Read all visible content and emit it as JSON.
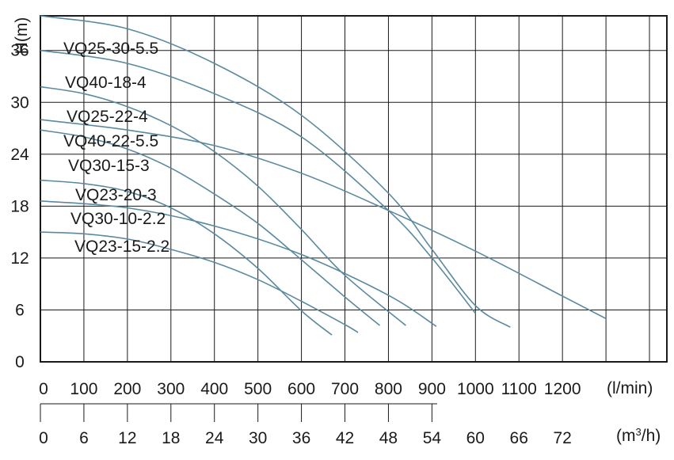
{
  "chart_data": {
    "type": "line",
    "ylabel": "H(m)",
    "ylim": [
      0,
      40
    ],
    "yticks": [
      "0",
      "6",
      "12",
      "18",
      "24",
      "30",
      "36"
    ],
    "ytick_values": [
      0,
      6,
      12,
      18,
      24,
      30,
      36
    ],
    "x_primary": {
      "unit": "(l/min)",
      "ticks": [
        "0",
        "100",
        "200",
        "300",
        "400",
        "500",
        "600",
        "700",
        "800",
        "900",
        "1000",
        "1100",
        "1200"
      ],
      "tick_values": [
        0,
        100,
        200,
        300,
        400,
        500,
        600,
        700,
        800,
        900,
        1000,
        1100,
        1200
      ],
      "xlim": [
        0,
        1440
      ]
    },
    "x_secondary": {
      "unit_base": "(m",
      "unit_sup": "3",
      "unit_tail": "/h)",
      "ticks": [
        "0",
        "6",
        "12",
        "18",
        "24",
        "30",
        "36",
        "42",
        "48",
        "54",
        "60",
        "66",
        "72"
      ],
      "tick_values": [
        0,
        6,
        12,
        18,
        24,
        30,
        36,
        42,
        48,
        54,
        60,
        66,
        72
      ]
    },
    "grid": true,
    "series": [
      {
        "name": "VQ25-30-5.5",
        "x": [
          0,
          200,
          400,
          600,
          800,
          900,
          1000,
          1080
        ],
        "y": [
          40,
          38.5,
          34.5,
          28.5,
          19.5,
          13,
          6.5,
          4
        ]
      },
      {
        "name": "VQ40-18-4",
        "x": [
          0,
          200,
          400,
          600,
          800,
          900,
          1000
        ],
        "y": [
          36,
          34.5,
          31,
          26,
          17.5,
          12,
          5.6
        ]
      },
      {
        "name": "VQ25-22-4",
        "x": [
          0,
          100,
          200,
          300,
          400,
          500,
          600,
          700,
          840
        ],
        "y": [
          31.8,
          31,
          29.5,
          27.3,
          24.3,
          20.3,
          15.3,
          10,
          4.2
        ]
      },
      {
        "name": "VQ40-22-5.5",
        "x": [
          0,
          200,
          400,
          600,
          800,
          1000,
          1200,
          1300
        ],
        "y": [
          28,
          26.8,
          25,
          21.8,
          17.5,
          12.8,
          7.6,
          5
        ]
      },
      {
        "name": "VQ30-15-3",
        "x": [
          0,
          100,
          200,
          300,
          400,
          500,
          600,
          700,
          780
        ],
        "y": [
          26.8,
          26,
          24.6,
          22.4,
          19.4,
          16,
          11.8,
          7.5,
          4.2
        ]
      },
      {
        "name": "VQ23-20-3",
        "x": [
          0,
          100,
          200,
          300,
          400,
          500,
          600,
          670
        ],
        "y": [
          21,
          20.6,
          19.7,
          17.8,
          14.8,
          10.8,
          5.9,
          3.1
        ]
      },
      {
        "name": "VQ30-10-2.2",
        "x": [
          0,
          200,
          400,
          600,
          800,
          910
        ],
        "y": [
          18.6,
          17.8,
          15.7,
          12.4,
          7.7,
          4.1
        ]
      },
      {
        "name": "VQ23-15-2.2",
        "x": [
          0,
          100,
          200,
          300,
          400,
          500,
          600,
          700,
          730
        ],
        "y": [
          15,
          14.8,
          14.2,
          13,
          11.5,
          9.5,
          7,
          4.3,
          3.4
        ]
      }
    ]
  }
}
